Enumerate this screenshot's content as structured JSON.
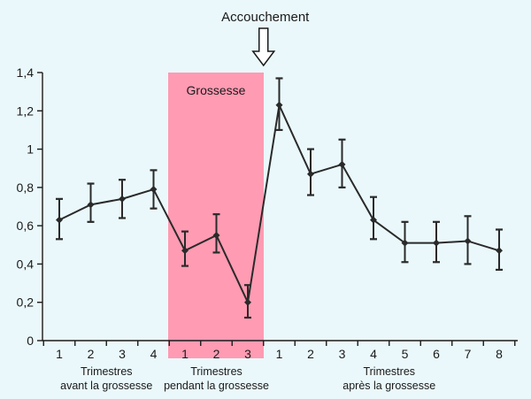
{
  "chart_data": {
    "type": "line",
    "title": "",
    "annotation": "Accouchement",
    "shaded_region_label": "Grossesse",
    "colors": {
      "line": "#2a2a2a",
      "band": "#ff9bb3",
      "background": "#eaf8fb"
    },
    "ylim": [
      0,
      1.4
    ],
    "yticks": [
      "0",
      "0,2",
      "0,4",
      "0,6",
      "0,8",
      "1",
      "1,2",
      "1,4"
    ],
    "ytick_values": [
      0,
      0.2,
      0.4,
      0.6,
      0.8,
      1.0,
      1.2,
      1.4
    ],
    "x_tick_labels": [
      "1",
      "2",
      "3",
      "4",
      "1",
      "2",
      "3",
      "1",
      "2",
      "3",
      "4",
      "5",
      "6",
      "7",
      "8"
    ],
    "groups": [
      {
        "line1": "Trimestres",
        "line2": "avant la grossesse",
        "start": 0,
        "end": 3
      },
      {
        "line1": "Trimestres",
        "line2": "pendant la grossesse",
        "start": 4,
        "end": 6
      },
      {
        "line1": "Trimestres",
        "line2": "après la grossesse",
        "start": 7,
        "end": 14
      }
    ],
    "series": [
      {
        "values": [
          0.63,
          0.71,
          0.74,
          0.79,
          0.47,
          0.55,
          0.2,
          1.23,
          0.87,
          0.92,
          0.63,
          0.51,
          0.51,
          0.52,
          0.47
        ],
        "error_low": [
          0.53,
          0.62,
          0.64,
          0.69,
          0.39,
          0.46,
          0.12,
          1.1,
          0.76,
          0.8,
          0.53,
          0.41,
          0.41,
          0.4,
          0.37
        ],
        "error_high": [
          0.74,
          0.82,
          0.84,
          0.89,
          0.57,
          0.66,
          0.29,
          1.37,
          1.0,
          1.05,
          0.75,
          0.62,
          0.62,
          0.65,
          0.58
        ]
      }
    ],
    "shaded_region": {
      "from_index": 4,
      "to_index": 6
    },
    "annotation_at_index": 6.5
  }
}
